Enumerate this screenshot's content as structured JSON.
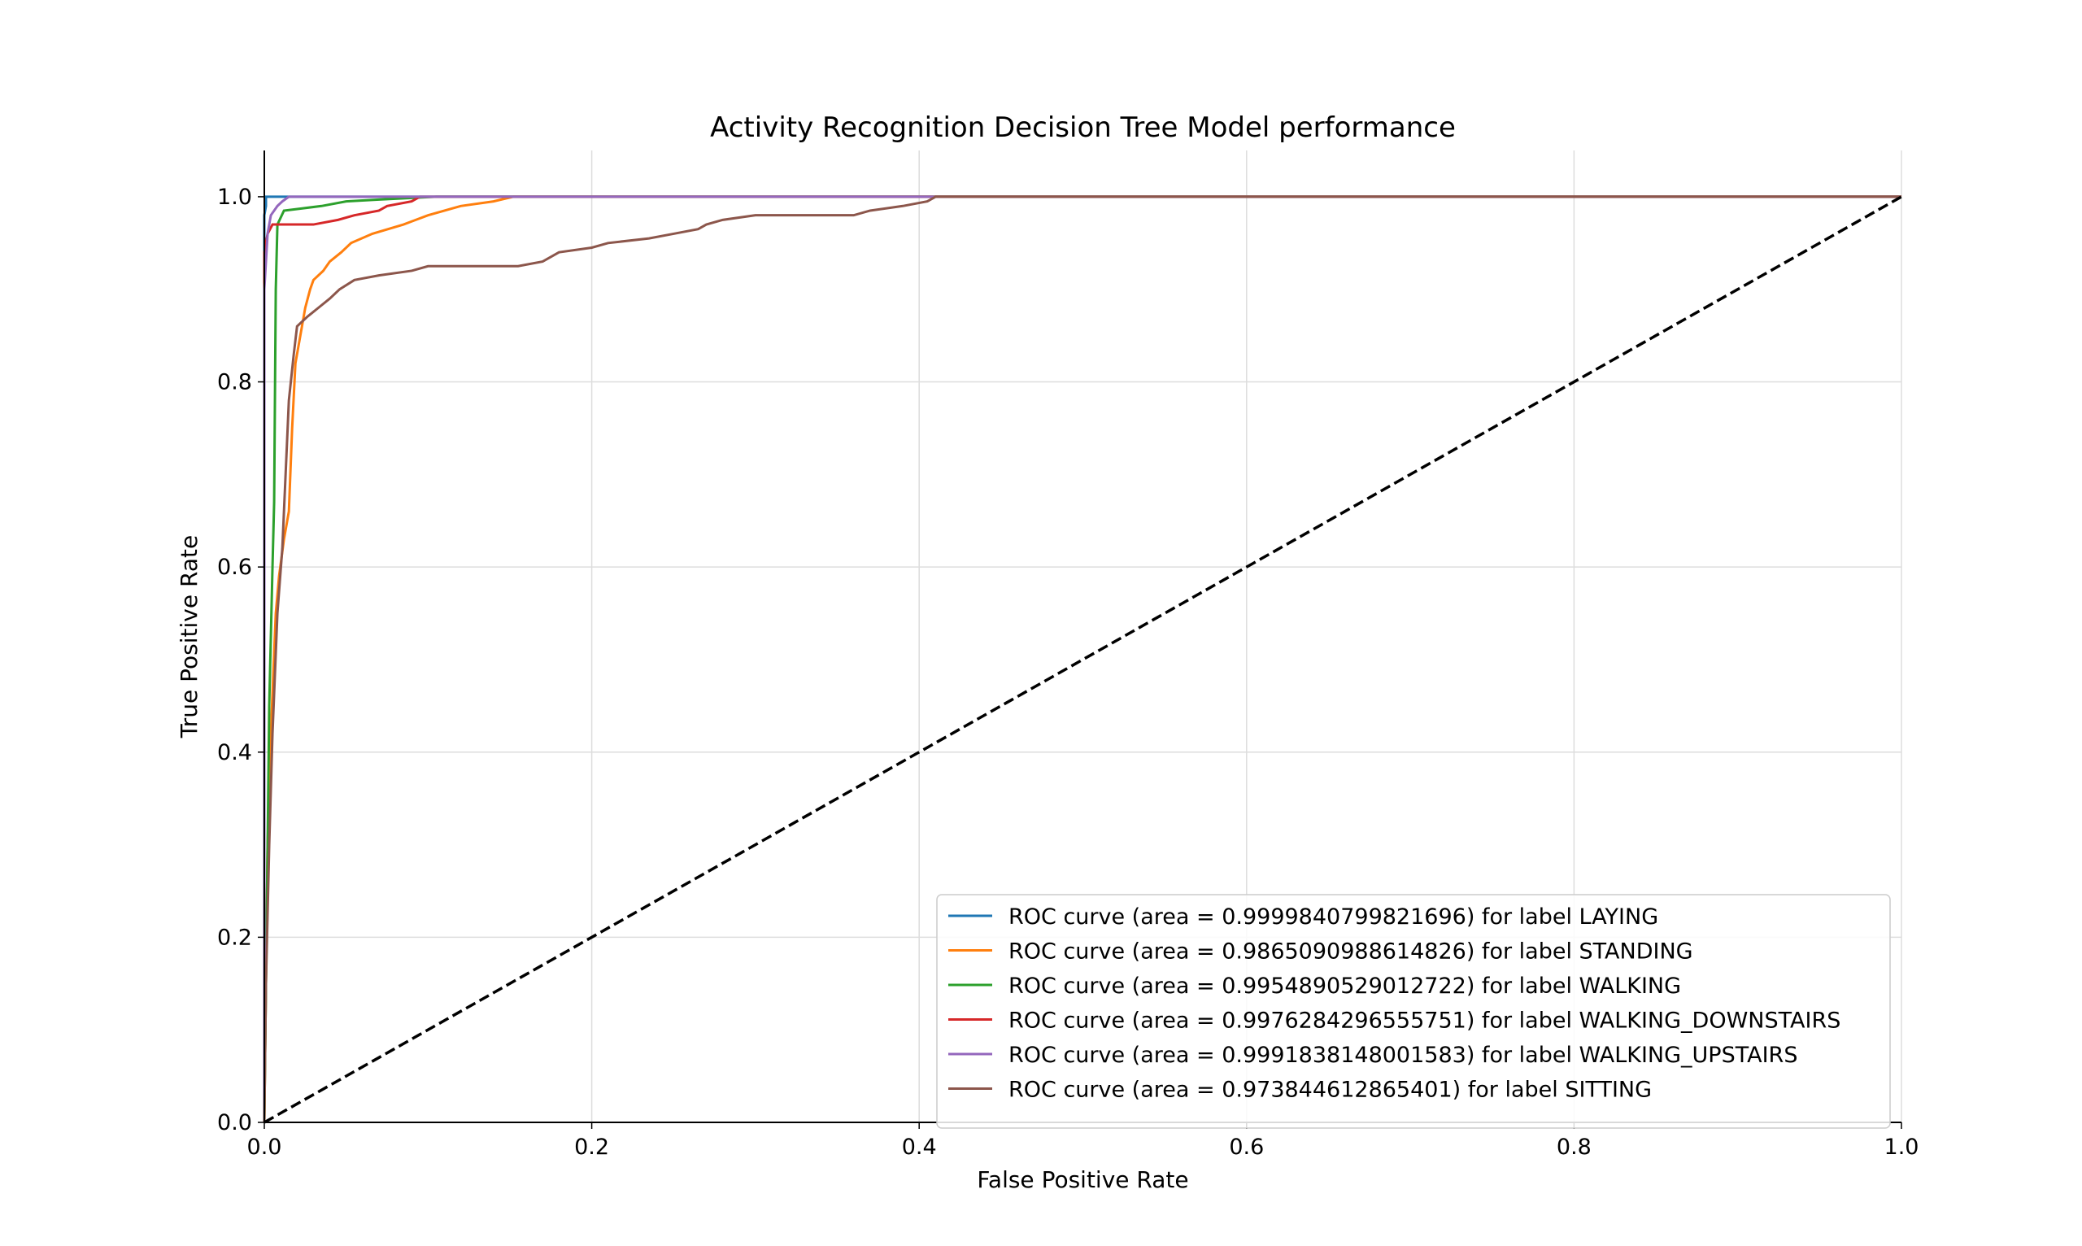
{
  "chart_data": {
    "type": "line",
    "title": "Activity Recognition Decision Tree Model performance",
    "xlabel": "False Positive Rate",
    "ylabel": "True Positive Rate",
    "xlim": [
      0.0,
      1.0
    ],
    "ylim": [
      0.0,
      1.05
    ],
    "grid": true,
    "legend_position": "lower-right",
    "x_ticks": [
      "0.0",
      "0.2",
      "0.4",
      "0.6",
      "0.8",
      "1.0"
    ],
    "y_ticks": [
      "0.0",
      "0.2",
      "0.4",
      "0.6",
      "0.8",
      "1.0"
    ],
    "series": [
      {
        "name": "ROC curve (area = 0.9999840799821696) for label LAYING",
        "color": "#1f77b4",
        "points": [
          [
            0,
            0
          ],
          [
            0,
            0.98
          ],
          [
            0.001,
            0.99
          ],
          [
            0.001,
            1.0
          ],
          [
            1.0,
            1.0
          ]
        ]
      },
      {
        "name": "ROC curve (area = 0.9865090988614826) for label STANDING",
        "color": "#ff7f0e",
        "points": [
          [
            0,
            0
          ],
          [
            0.001,
            0.15
          ],
          [
            0.002,
            0.3
          ],
          [
            0.004,
            0.42
          ],
          [
            0.007,
            0.55
          ],
          [
            0.009,
            0.59
          ],
          [
            0.012,
            0.63
          ],
          [
            0.015,
            0.66
          ],
          [
            0.017,
            0.75
          ],
          [
            0.019,
            0.82
          ],
          [
            0.022,
            0.85
          ],
          [
            0.025,
            0.88
          ],
          [
            0.028,
            0.9
          ],
          [
            0.03,
            0.91
          ],
          [
            0.036,
            0.92
          ],
          [
            0.04,
            0.93
          ],
          [
            0.047,
            0.94
          ],
          [
            0.053,
            0.95
          ],
          [
            0.066,
            0.96
          ],
          [
            0.085,
            0.97
          ],
          [
            0.1,
            0.98
          ],
          [
            0.12,
            0.99
          ],
          [
            0.14,
            0.995
          ],
          [
            0.152,
            1.0
          ],
          [
            1.0,
            1.0
          ]
        ]
      },
      {
        "name": "ROC curve (area = 0.9954890529012722) for label WALKING",
        "color": "#2ca02c",
        "points": [
          [
            0,
            0
          ],
          [
            0.001,
            0.15
          ],
          [
            0.002,
            0.3
          ],
          [
            0.003,
            0.45
          ],
          [
            0.005,
            0.6
          ],
          [
            0.006,
            0.67
          ],
          [
            0.007,
            0.9
          ],
          [
            0.008,
            0.97
          ],
          [
            0.012,
            0.985
          ],
          [
            0.035,
            0.99
          ],
          [
            0.05,
            0.995
          ],
          [
            0.07,
            0.997
          ],
          [
            0.105,
            1.0
          ],
          [
            1.0,
            1.0
          ]
        ]
      },
      {
        "name": "ROC curve (area = 0.9976284296555751) for label WALKING_DOWNSTAIRS",
        "color": "#d62728",
        "points": [
          [
            0,
            0
          ],
          [
            0,
            0.94
          ],
          [
            0.002,
            0.96
          ],
          [
            0.005,
            0.97
          ],
          [
            0.03,
            0.97
          ],
          [
            0.045,
            0.975
          ],
          [
            0.055,
            0.98
          ],
          [
            0.07,
            0.985
          ],
          [
            0.075,
            0.99
          ],
          [
            0.09,
            0.995
          ],
          [
            0.095,
            1.0
          ],
          [
            1.0,
            1.0
          ]
        ]
      },
      {
        "name": "ROC curve (area = 0.9991838148001583) for label WALKING_UPSTAIRS",
        "color": "#9467bd",
        "points": [
          [
            0,
            0
          ],
          [
            0,
            0.9
          ],
          [
            0.002,
            0.96
          ],
          [
            0.004,
            0.98
          ],
          [
            0.008,
            0.99
          ],
          [
            0.011,
            0.995
          ],
          [
            0.015,
            1.0
          ],
          [
            1.0,
            1.0
          ]
        ]
      },
      {
        "name": "ROC curve (area = 0.973844612865401) for label SITTING",
        "color": "#8c564b",
        "points": [
          [
            0,
            0
          ],
          [
            0.001,
            0.15
          ],
          [
            0.003,
            0.3
          ],
          [
            0.005,
            0.42
          ],
          [
            0.008,
            0.55
          ],
          [
            0.011,
            0.62
          ],
          [
            0.013,
            0.7
          ],
          [
            0.015,
            0.78
          ],
          [
            0.018,
            0.83
          ],
          [
            0.02,
            0.86
          ],
          [
            0.026,
            0.87
          ],
          [
            0.033,
            0.88
          ],
          [
            0.04,
            0.89
          ],
          [
            0.046,
            0.9
          ],
          [
            0.055,
            0.91
          ],
          [
            0.07,
            0.915
          ],
          [
            0.09,
            0.92
          ],
          [
            0.1,
            0.925
          ],
          [
            0.155,
            0.925
          ],
          [
            0.17,
            0.93
          ],
          [
            0.18,
            0.94
          ],
          [
            0.2,
            0.945
          ],
          [
            0.21,
            0.95
          ],
          [
            0.235,
            0.955
          ],
          [
            0.25,
            0.96
          ],
          [
            0.265,
            0.965
          ],
          [
            0.27,
            0.97
          ],
          [
            0.28,
            0.975
          ],
          [
            0.3,
            0.98
          ],
          [
            0.36,
            0.98
          ],
          [
            0.37,
            0.985
          ],
          [
            0.39,
            0.99
          ],
          [
            0.405,
            0.995
          ],
          [
            0.41,
            1.0
          ],
          [
            1.0,
            1.0
          ]
        ]
      },
      {
        "name": "",
        "color": "#000000",
        "dashed": true,
        "points": [
          [
            0,
            0
          ],
          [
            1,
            1
          ]
        ]
      }
    ]
  }
}
